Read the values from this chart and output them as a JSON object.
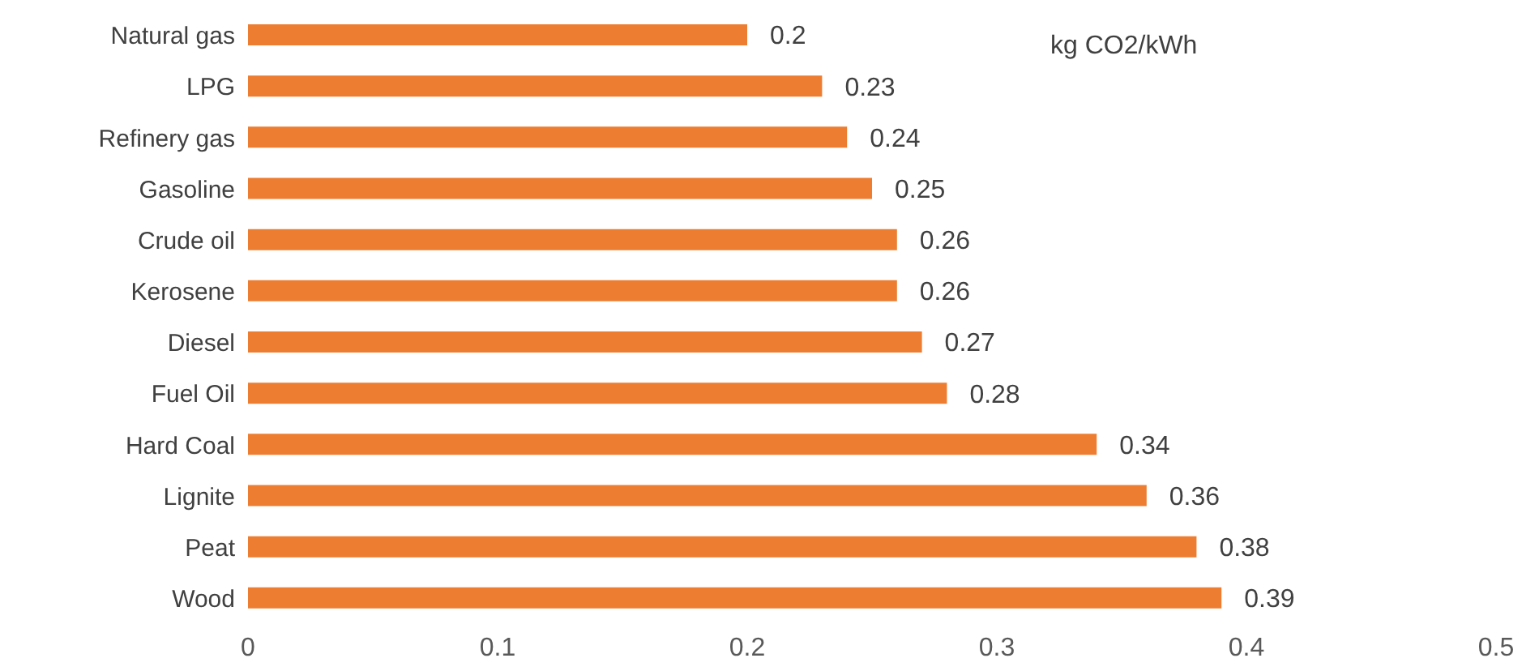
{
  "chart_data": {
    "type": "bar",
    "orientation": "horizontal",
    "categories": [
      "Natural gas",
      "LPG",
      "Refinery gas",
      "Gasoline",
      "Crude oil",
      "Kerosene",
      "Diesel",
      "Fuel Oil",
      "Hard Coal",
      "Lignite",
      "Peat",
      "Wood"
    ],
    "values": [
      0.2,
      0.23,
      0.24,
      0.25,
      0.26,
      0.26,
      0.27,
      0.28,
      0.34,
      0.36,
      0.38,
      0.39
    ],
    "color": "#ed7d31",
    "data_labels": true,
    "xlim": [
      0,
      0.5
    ],
    "xticks": [
      0,
      0.1,
      0.2,
      0.3,
      0.4,
      0.5
    ],
    "grid": false,
    "legend": false,
    "annotations": [
      "kg CO2/kWh"
    ]
  }
}
